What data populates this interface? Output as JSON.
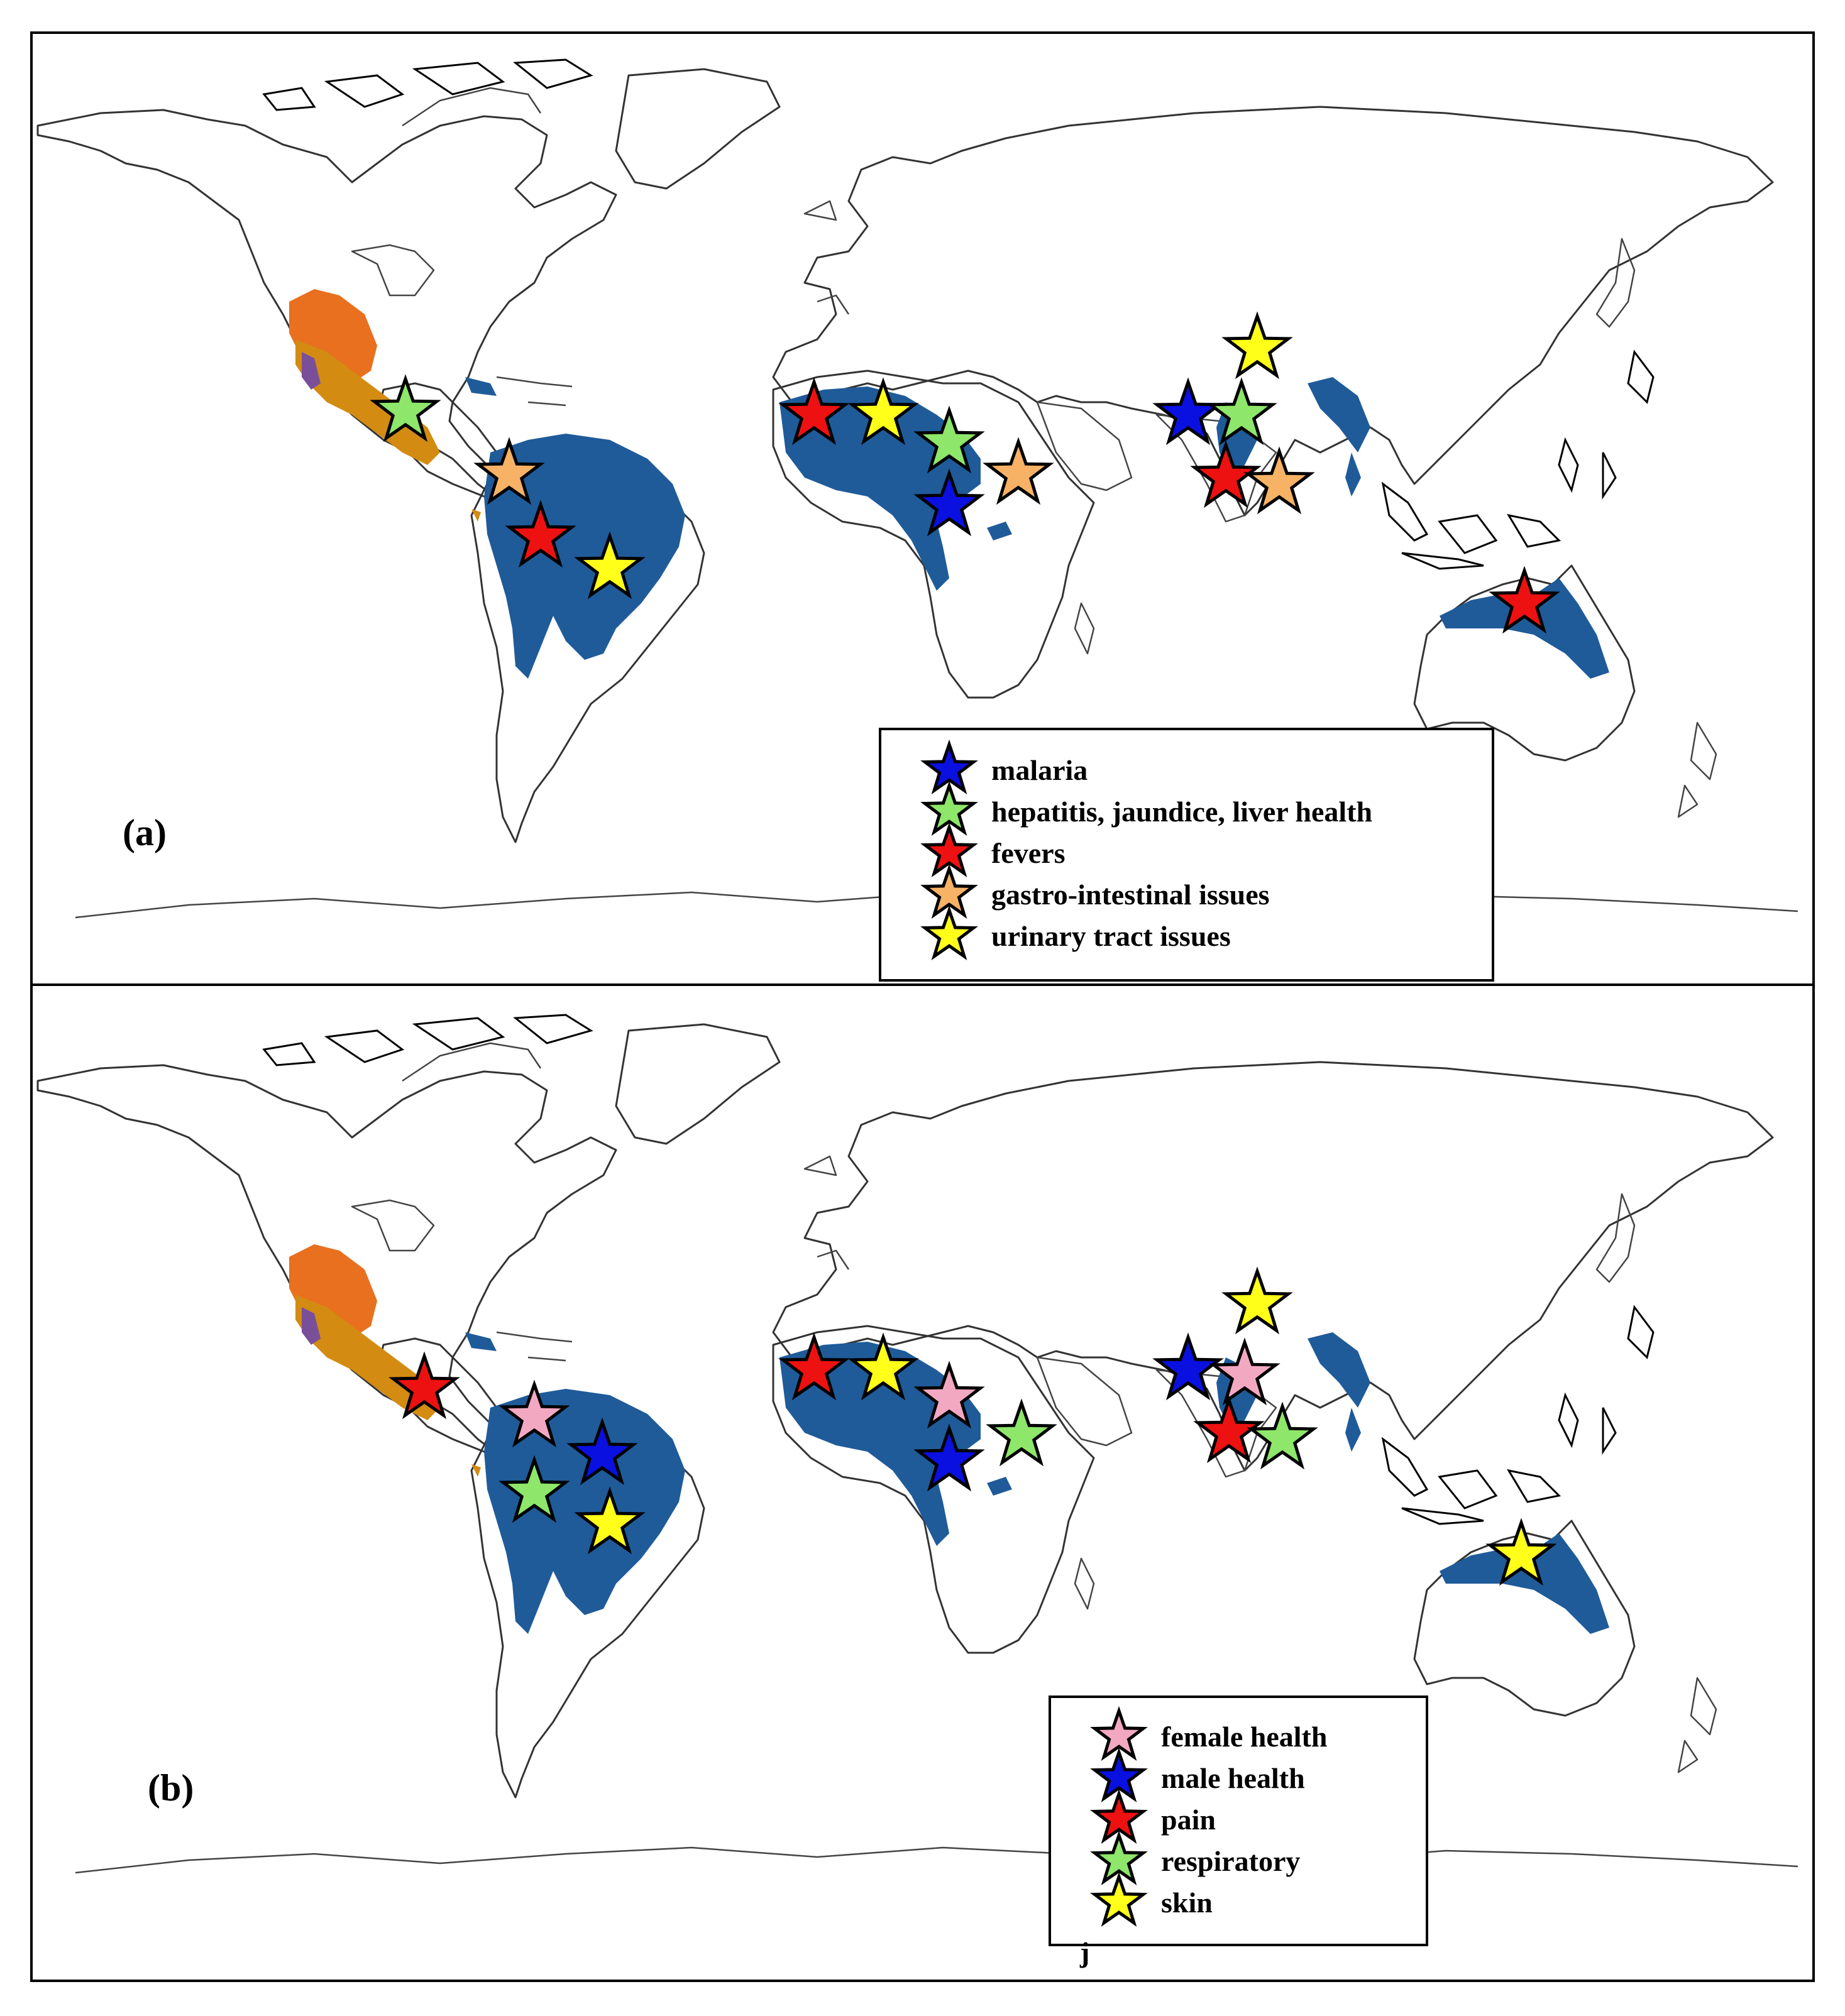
{
  "colors": {
    "blue_range": "#1f5b99",
    "orange_range": "#e8701f",
    "gold_range": "#d38b12",
    "purple_range": "#7a4f9a",
    "star_blue": "#0a10e0",
    "star_green": "#8ee66a",
    "star_red": "#ee1111",
    "star_orange": "#f7b266",
    "star_yellow": "#ffff1a",
    "star_pink": "#f3a8c2",
    "outline": "#000000"
  },
  "panels": [
    {
      "label": "(a)",
      "legend": [
        {
          "color": "star_blue",
          "text": "malaria"
        },
        {
          "color": "star_green",
          "text": "hepatitis, jaundice, liver health"
        },
        {
          "color": "star_red",
          "text": "fevers"
        },
        {
          "color": "star_orange",
          "text": "gastro-intestinal issues"
        },
        {
          "color": "star_yellow",
          "text": "urinary tract issues"
        }
      ],
      "stars": [
        {
          "region": "Mexico",
          "color": "star_green"
        },
        {
          "region": "Colombia",
          "color": "star_orange"
        },
        {
          "region": "Amazon west",
          "color": "star_red"
        },
        {
          "region": "Amazon east",
          "color": "star_yellow"
        },
        {
          "region": "West Africa",
          "color": "star_red"
        },
        {
          "region": "Sahel",
          "color": "star_yellow"
        },
        {
          "region": "Nigeria",
          "color": "star_green"
        },
        {
          "region": "East Africa",
          "color": "star_orange"
        },
        {
          "region": "Central Africa",
          "color": "star_blue"
        },
        {
          "region": "Himalaya",
          "color": "star_yellow"
        },
        {
          "region": "Pakistan",
          "color": "star_blue"
        },
        {
          "region": "North India",
          "color": "star_green"
        },
        {
          "region": "Central India",
          "color": "star_red"
        },
        {
          "region": "East India",
          "color": "star_orange"
        },
        {
          "region": "North Australia",
          "color": "star_red"
        }
      ]
    },
    {
      "label": "(b)",
      "legend": [
        {
          "color": "star_pink",
          "text": "female health"
        },
        {
          "color": "star_blue",
          "text": "male health"
        },
        {
          "color": "star_red",
          "text": "pain"
        },
        {
          "color": "star_green",
          "text": "respiratory"
        },
        {
          "color": "star_yellow",
          "text": "skin"
        }
      ],
      "stars": [
        {
          "region": "Mexico",
          "color": "star_red"
        },
        {
          "region": "Colombia",
          "color": "star_pink"
        },
        {
          "region": "Guiana",
          "color": "star_blue"
        },
        {
          "region": "Amazon west",
          "color": "star_green"
        },
        {
          "region": "Amazon east",
          "color": "star_yellow"
        },
        {
          "region": "West Africa",
          "color": "star_red"
        },
        {
          "region": "Sahel",
          "color": "star_yellow"
        },
        {
          "region": "Nigeria",
          "color": "star_pink"
        },
        {
          "region": "East Africa",
          "color": "star_green"
        },
        {
          "region": "Central Africa",
          "color": "star_blue"
        },
        {
          "region": "Himalaya",
          "color": "star_yellow"
        },
        {
          "region": "Pakistan",
          "color": "star_blue"
        },
        {
          "region": "North India",
          "color": "star_pink"
        },
        {
          "region": "Central India",
          "color": "star_red"
        },
        {
          "region": "East India",
          "color": "star_green"
        },
        {
          "region": "North Australia",
          "color": "star_yellow"
        }
      ],
      "stray_mark": "j"
    }
  ]
}
